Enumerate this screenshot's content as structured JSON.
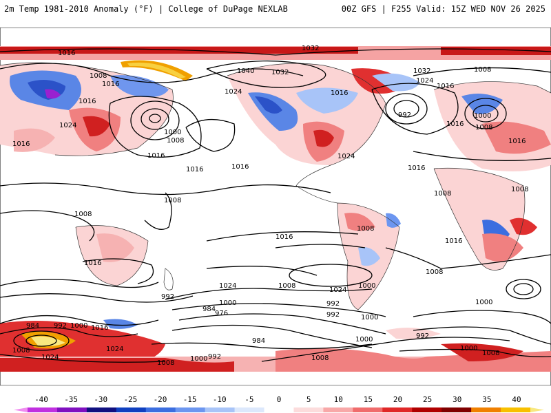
{
  "header": {
    "left": "2m Temp 1981-2010 Anomaly (°F) | College of DuPage NEXLAB",
    "right": "00Z GFS | F255 Valid: 15Z WED NOV 26 2025"
  },
  "colorbar": {
    "ticks": [
      "-40",
      "-35",
      "-30",
      "-25",
      "-20",
      "-15",
      "-10",
      "-5",
      "0",
      "5",
      "10",
      "15",
      "20",
      "25",
      "30",
      "35",
      "40"
    ],
    "colors": [
      "#f08cf0",
      "#c030e0",
      "#8010c0",
      "#101080",
      "#1040c0",
      "#3c6ee0",
      "#6c96f0",
      "#a8c4f8",
      "#dce8fc",
      "#ffffff",
      "#fcdcdc",
      "#f8a8a8",
      "#f06c6c",
      "#e02828",
      "#b00000",
      "#800000",
      "#f08000",
      "#f8c000",
      "#f8e880"
    ]
  },
  "isobars": [
    {
      "text": "1016"
    },
    {
      "text": "1008"
    },
    {
      "text": "1016"
    },
    {
      "text": "1016"
    },
    {
      "text": "1024"
    },
    {
      "text": "1032"
    },
    {
      "text": "1040"
    },
    {
      "text": "1032"
    },
    {
      "text": "1024"
    },
    {
      "text": "1016"
    },
    {
      "text": "1000"
    },
    {
      "text": "1008"
    },
    {
      "text": "1016"
    },
    {
      "text": "1016"
    },
    {
      "text": "1016"
    },
    {
      "text": "1024"
    },
    {
      "text": "1016"
    },
    {
      "text": "1032"
    },
    {
      "text": "1024"
    },
    {
      "text": "1008"
    },
    {
      "text": "1016"
    },
    {
      "text": "992"
    },
    {
      "text": "1000"
    },
    {
      "text": "1008"
    },
    {
      "text": "1016"
    },
    {
      "text": "1016"
    },
    {
      "text": "1008"
    },
    {
      "text": "1008"
    },
    {
      "text": "1008"
    },
    {
      "text": "1016"
    },
    {
      "text": "1008"
    },
    {
      "text": "1016"
    },
    {
      "text": "1016"
    },
    {
      "text": "1008"
    },
    {
      "text": "1024"
    },
    {
      "text": "1016"
    },
    {
      "text": "1000"
    },
    {
      "text": "1008"
    },
    {
      "text": "1024"
    },
    {
      "text": "1008"
    },
    {
      "text": "1000"
    },
    {
      "text": "992"
    },
    {
      "text": "984"
    },
    {
      "text": "976"
    },
    {
      "text": "992"
    },
    {
      "text": "1000"
    },
    {
      "text": "984"
    },
    {
      "text": "992"
    },
    {
      "text": "1000"
    },
    {
      "text": "1016"
    },
    {
      "text": "1024"
    },
    {
      "text": "1008"
    },
    {
      "text": "1000"
    },
    {
      "text": "992"
    },
    {
      "text": "984"
    },
    {
      "text": "992"
    },
    {
      "text": "1000"
    },
    {
      "text": "1000"
    },
    {
      "text": "1008"
    },
    {
      "text": "1008"
    },
    {
      "text": "1024"
    },
    {
      "text": "1008"
    },
    {
      "text": "1000"
    },
    {
      "text": "992"
    }
  ]
}
